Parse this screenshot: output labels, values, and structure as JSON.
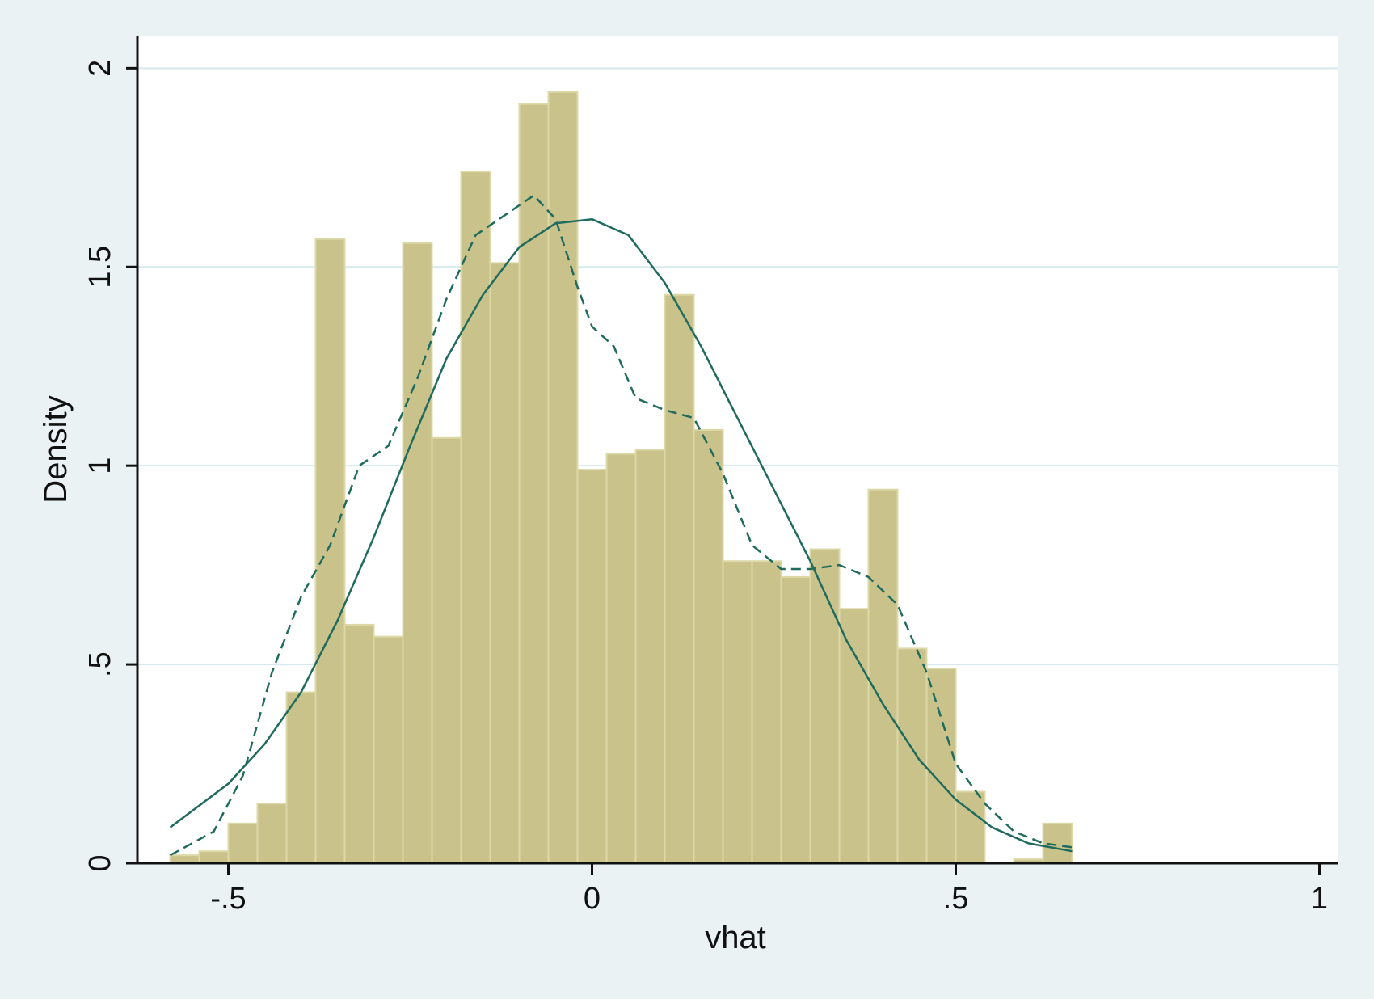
{
  "chart_data": {
    "type": "bar",
    "title": "",
    "xlabel": "vhat",
    "ylabel": "Density",
    "xlim": [
      -0.625,
      1.025
    ],
    "ylim": [
      0,
      2.08
    ],
    "x_ticks": [
      {
        "v": -0.5,
        "label": "-.5"
      },
      {
        "v": 0,
        "label": "0"
      },
      {
        "v": 0.5,
        "label": ".5"
      },
      {
        "v": 1,
        "label": "1"
      }
    ],
    "y_ticks": [
      {
        "v": 0,
        "label": "0"
      },
      {
        "v": 0.5,
        "label": ".5"
      },
      {
        "v": 1,
        "label": "1"
      },
      {
        "v": 1.5,
        "label": "1.5"
      },
      {
        "v": 2,
        "label": "2"
      }
    ],
    "grid": true,
    "bin_width": 0.04,
    "bins_start": -0.58,
    "bar_values": [
      0.02,
      0.03,
      0.1,
      0.15,
      0.43,
      1.57,
      0.6,
      0.57,
      1.56,
      1.07,
      1.74,
      1.51,
      1.91,
      1.94,
      0.99,
      1.03,
      1.04,
      1.43,
      1.09,
      0.76,
      0.76,
      0.72,
      0.79,
      0.64,
      0.94,
      0.54,
      0.49,
      0.18,
      0.0,
      0.01,
      0.1
    ],
    "series": [
      {
        "style": "solid",
        "x": [
          -0.58,
          -0.5,
          -0.45,
          -0.4,
          -0.35,
          -0.3,
          -0.25,
          -0.2,
          -0.15,
          -0.1,
          -0.05,
          0.0,
          0.05,
          0.1,
          0.15,
          0.2,
          0.25,
          0.3,
          0.35,
          0.4,
          0.45,
          0.5,
          0.55,
          0.6,
          0.66
        ],
        "values": [
          0.09,
          0.2,
          0.3,
          0.43,
          0.61,
          0.82,
          1.05,
          1.27,
          1.43,
          1.55,
          1.61,
          1.62,
          1.58,
          1.46,
          1.3,
          1.12,
          0.94,
          0.76,
          0.56,
          0.4,
          0.26,
          0.16,
          0.09,
          0.05,
          0.03
        ]
      },
      {
        "style": "dashed",
        "x": [
          -0.58,
          -0.52,
          -0.48,
          -0.44,
          -0.4,
          -0.36,
          -0.32,
          -0.28,
          -0.24,
          -0.2,
          -0.16,
          -0.12,
          -0.08,
          -0.05,
          -0.02,
          0.0,
          0.03,
          0.06,
          0.1,
          0.14,
          0.18,
          0.22,
          0.26,
          0.3,
          0.34,
          0.38,
          0.42,
          0.46,
          0.5,
          0.54,
          0.58,
          0.62,
          0.66
        ],
        "values": [
          0.02,
          0.08,
          0.22,
          0.48,
          0.67,
          0.8,
          1.0,
          1.05,
          1.22,
          1.42,
          1.58,
          1.63,
          1.68,
          1.62,
          1.45,
          1.35,
          1.3,
          1.17,
          1.14,
          1.12,
          0.98,
          0.8,
          0.74,
          0.74,
          0.75,
          0.72,
          0.65,
          0.48,
          0.25,
          0.15,
          0.08,
          0.05,
          0.04
        ]
      }
    ],
    "colors": {
      "bar_fill": "#c9c28a",
      "bar_edge": "#ddd8a8",
      "line": "#1f6b5e",
      "grid": "#d6e9ec",
      "axis": "#111111",
      "background": "#eaf2f3",
      "plot_bg": "#ffffff"
    }
  }
}
